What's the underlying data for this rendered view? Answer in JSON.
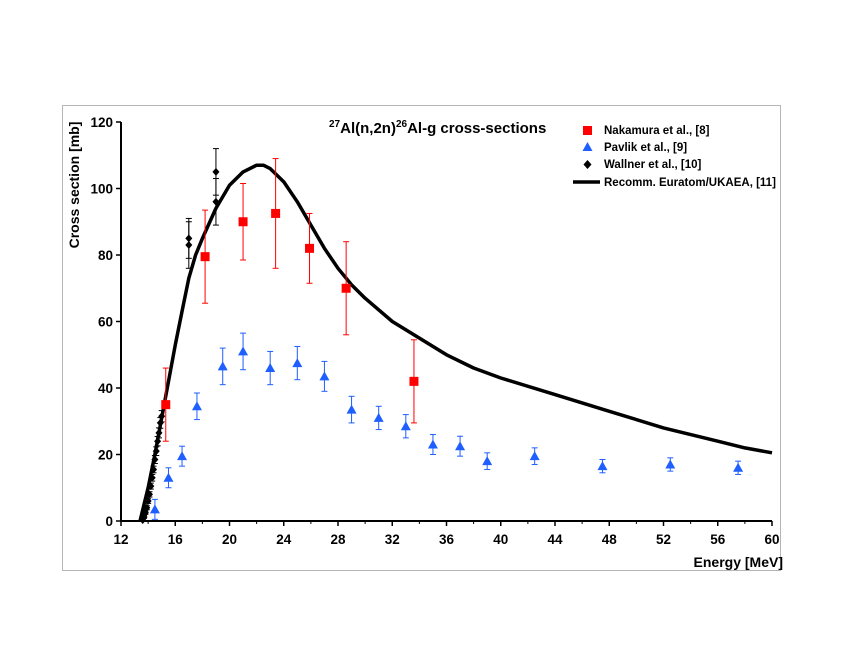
{
  "chart_data": {
    "type": "scatter",
    "title": {
      "mass_a": "27",
      "element_a": "Al(n,2n)",
      "mass_b": "26",
      "rest": "Al-g cross-sections"
    },
    "xlabel": "Energy [MeV]",
    "ylabel": "Cross section [mb]",
    "xlim": [
      12,
      60
    ],
    "ylim": [
      0,
      120
    ],
    "xticks": [
      12,
      16,
      20,
      24,
      28,
      32,
      36,
      40,
      44,
      48,
      52,
      56,
      60
    ],
    "yticks": [
      0,
      20,
      40,
      60,
      80,
      100,
      120
    ],
    "legend_position": "top-right",
    "series": [
      {
        "name": "Nakamura et al., [8]",
        "marker": "square",
        "color": "#ff0000",
        "points": [
          {
            "x": 15.3,
            "y": 35.0,
            "err": 11.0
          },
          {
            "x": 18.2,
            "y": 79.5,
            "err": 14.0
          },
          {
            "x": 21.0,
            "y": 90.0,
            "err": 11.5
          },
          {
            "x": 23.4,
            "y": 92.5,
            "err": 16.5
          },
          {
            "x": 25.9,
            "y": 82.0,
            "err": 10.5
          },
          {
            "x": 28.6,
            "y": 70.0,
            "err": 14.0
          },
          {
            "x": 33.6,
            "y": 42.0,
            "err": 12.5
          }
        ]
      },
      {
        "name": "Pavlik et al., [9]",
        "marker": "triangle",
        "color": "#1f5fff",
        "points": [
          {
            "x": 14.5,
            "y": 3.5,
            "err": 3.0
          },
          {
            "x": 15.5,
            "y": 13.0,
            "err": 3.0
          },
          {
            "x": 16.5,
            "y": 19.5,
            "err": 3.0
          },
          {
            "x": 17.6,
            "y": 34.5,
            "err": 4.0
          },
          {
            "x": 19.5,
            "y": 46.5,
            "err": 5.5
          },
          {
            "x": 21.0,
            "y": 51.0,
            "err": 5.5
          },
          {
            "x": 23.0,
            "y": 46.0,
            "err": 5.0
          },
          {
            "x": 25.0,
            "y": 47.5,
            "err": 5.0
          },
          {
            "x": 27.0,
            "y": 43.5,
            "err": 4.5
          },
          {
            "x": 29.0,
            "y": 33.5,
            "err": 4.0
          },
          {
            "x": 31.0,
            "y": 31.0,
            "err": 3.5
          },
          {
            "x": 33.0,
            "y": 28.5,
            "err": 3.5
          },
          {
            "x": 35.0,
            "y": 23.0,
            "err": 3.0
          },
          {
            "x": 37.0,
            "y": 22.5,
            "err": 3.0
          },
          {
            "x": 39.0,
            "y": 18.0,
            "err": 2.5
          },
          {
            "x": 42.5,
            "y": 19.5,
            "err": 2.5
          },
          {
            "x": 47.5,
            "y": 16.5,
            "err": 2.0
          },
          {
            "x": 52.5,
            "y": 17.0,
            "err": 2.0
          },
          {
            "x": 57.5,
            "y": 16.0,
            "err": 2.0
          }
        ]
      },
      {
        "name": "Wallner et al., [10]",
        "marker": "diamond",
        "color": "#000000",
        "points": [
          {
            "x": 13.6,
            "y": 0.3,
            "err": 0.3
          },
          {
            "x": 13.7,
            "y": 1.2,
            "err": 0.4
          },
          {
            "x": 13.8,
            "y": 2.5,
            "err": 0.5
          },
          {
            "x": 13.9,
            "y": 4.0,
            "err": 0.6
          },
          {
            "x": 14.0,
            "y": 6.0,
            "err": 0.7
          },
          {
            "x": 14.1,
            "y": 8.0,
            "err": 0.8
          },
          {
            "x": 14.2,
            "y": 10.5,
            "err": 0.9
          },
          {
            "x": 14.3,
            "y": 13.0,
            "err": 1.0
          },
          {
            "x": 14.4,
            "y": 15.5,
            "err": 1.0
          },
          {
            "x": 14.5,
            "y": 18.5,
            "err": 1.2
          },
          {
            "x": 14.6,
            "y": 21.0,
            "err": 1.3
          },
          {
            "x": 14.7,
            "y": 24.0,
            "err": 1.4
          },
          {
            "x": 14.8,
            "y": 26.5,
            "err": 1.5
          },
          {
            "x": 14.9,
            "y": 29.5,
            "err": 1.6
          },
          {
            "x": 15.0,
            "y": 31.5,
            "err": 1.7
          },
          {
            "x": 17.0,
            "y": 85.0,
            "err": 6.0
          },
          {
            "x": 17.0,
            "y": 83.0,
            "err": 7.0
          },
          {
            "x": 19.0,
            "y": 105.0,
            "err": 7.0
          },
          {
            "x": 19.0,
            "y": 96.0,
            "err": 7.0
          }
        ]
      },
      {
        "name": "Recomm. Euratom/UKAEA, [11]",
        "marker": "line",
        "color": "#000000",
        "points": [
          {
            "x": 13.4,
            "y": 0
          },
          {
            "x": 14.0,
            "y": 10
          },
          {
            "x": 14.5,
            "y": 20
          },
          {
            "x": 15.0,
            "y": 31
          },
          {
            "x": 15.5,
            "y": 42
          },
          {
            "x": 16.0,
            "y": 53
          },
          {
            "x": 16.5,
            "y": 63
          },
          {
            "x": 17.0,
            "y": 73
          },
          {
            "x": 17.5,
            "y": 80
          },
          {
            "x": 18.0,
            "y": 85
          },
          {
            "x": 19.0,
            "y": 94
          },
          {
            "x": 20.0,
            "y": 101
          },
          {
            "x": 21.0,
            "y": 105
          },
          {
            "x": 22.0,
            "y": 107
          },
          {
            "x": 22.5,
            "y": 107
          },
          {
            "x": 23.0,
            "y": 106
          },
          {
            "x": 24.0,
            "y": 102
          },
          {
            "x": 25.0,
            "y": 96
          },
          {
            "x": 26.0,
            "y": 89
          },
          {
            "x": 27.0,
            "y": 82
          },
          {
            "x": 28.0,
            "y": 76
          },
          {
            "x": 29.0,
            "y": 71
          },
          {
            "x": 30.0,
            "y": 67
          },
          {
            "x": 32.0,
            "y": 60
          },
          {
            "x": 34.0,
            "y": 55
          },
          {
            "x": 36.0,
            "y": 50
          },
          {
            "x": 38.0,
            "y": 46
          },
          {
            "x": 40.0,
            "y": 43
          },
          {
            "x": 44.0,
            "y": 38
          },
          {
            "x": 48.0,
            "y": 33
          },
          {
            "x": 52.0,
            "y": 28
          },
          {
            "x": 56.0,
            "y": 24
          },
          {
            "x": 58.0,
            "y": 22
          },
          {
            "x": 60.0,
            "y": 20.5
          }
        ]
      }
    ]
  }
}
